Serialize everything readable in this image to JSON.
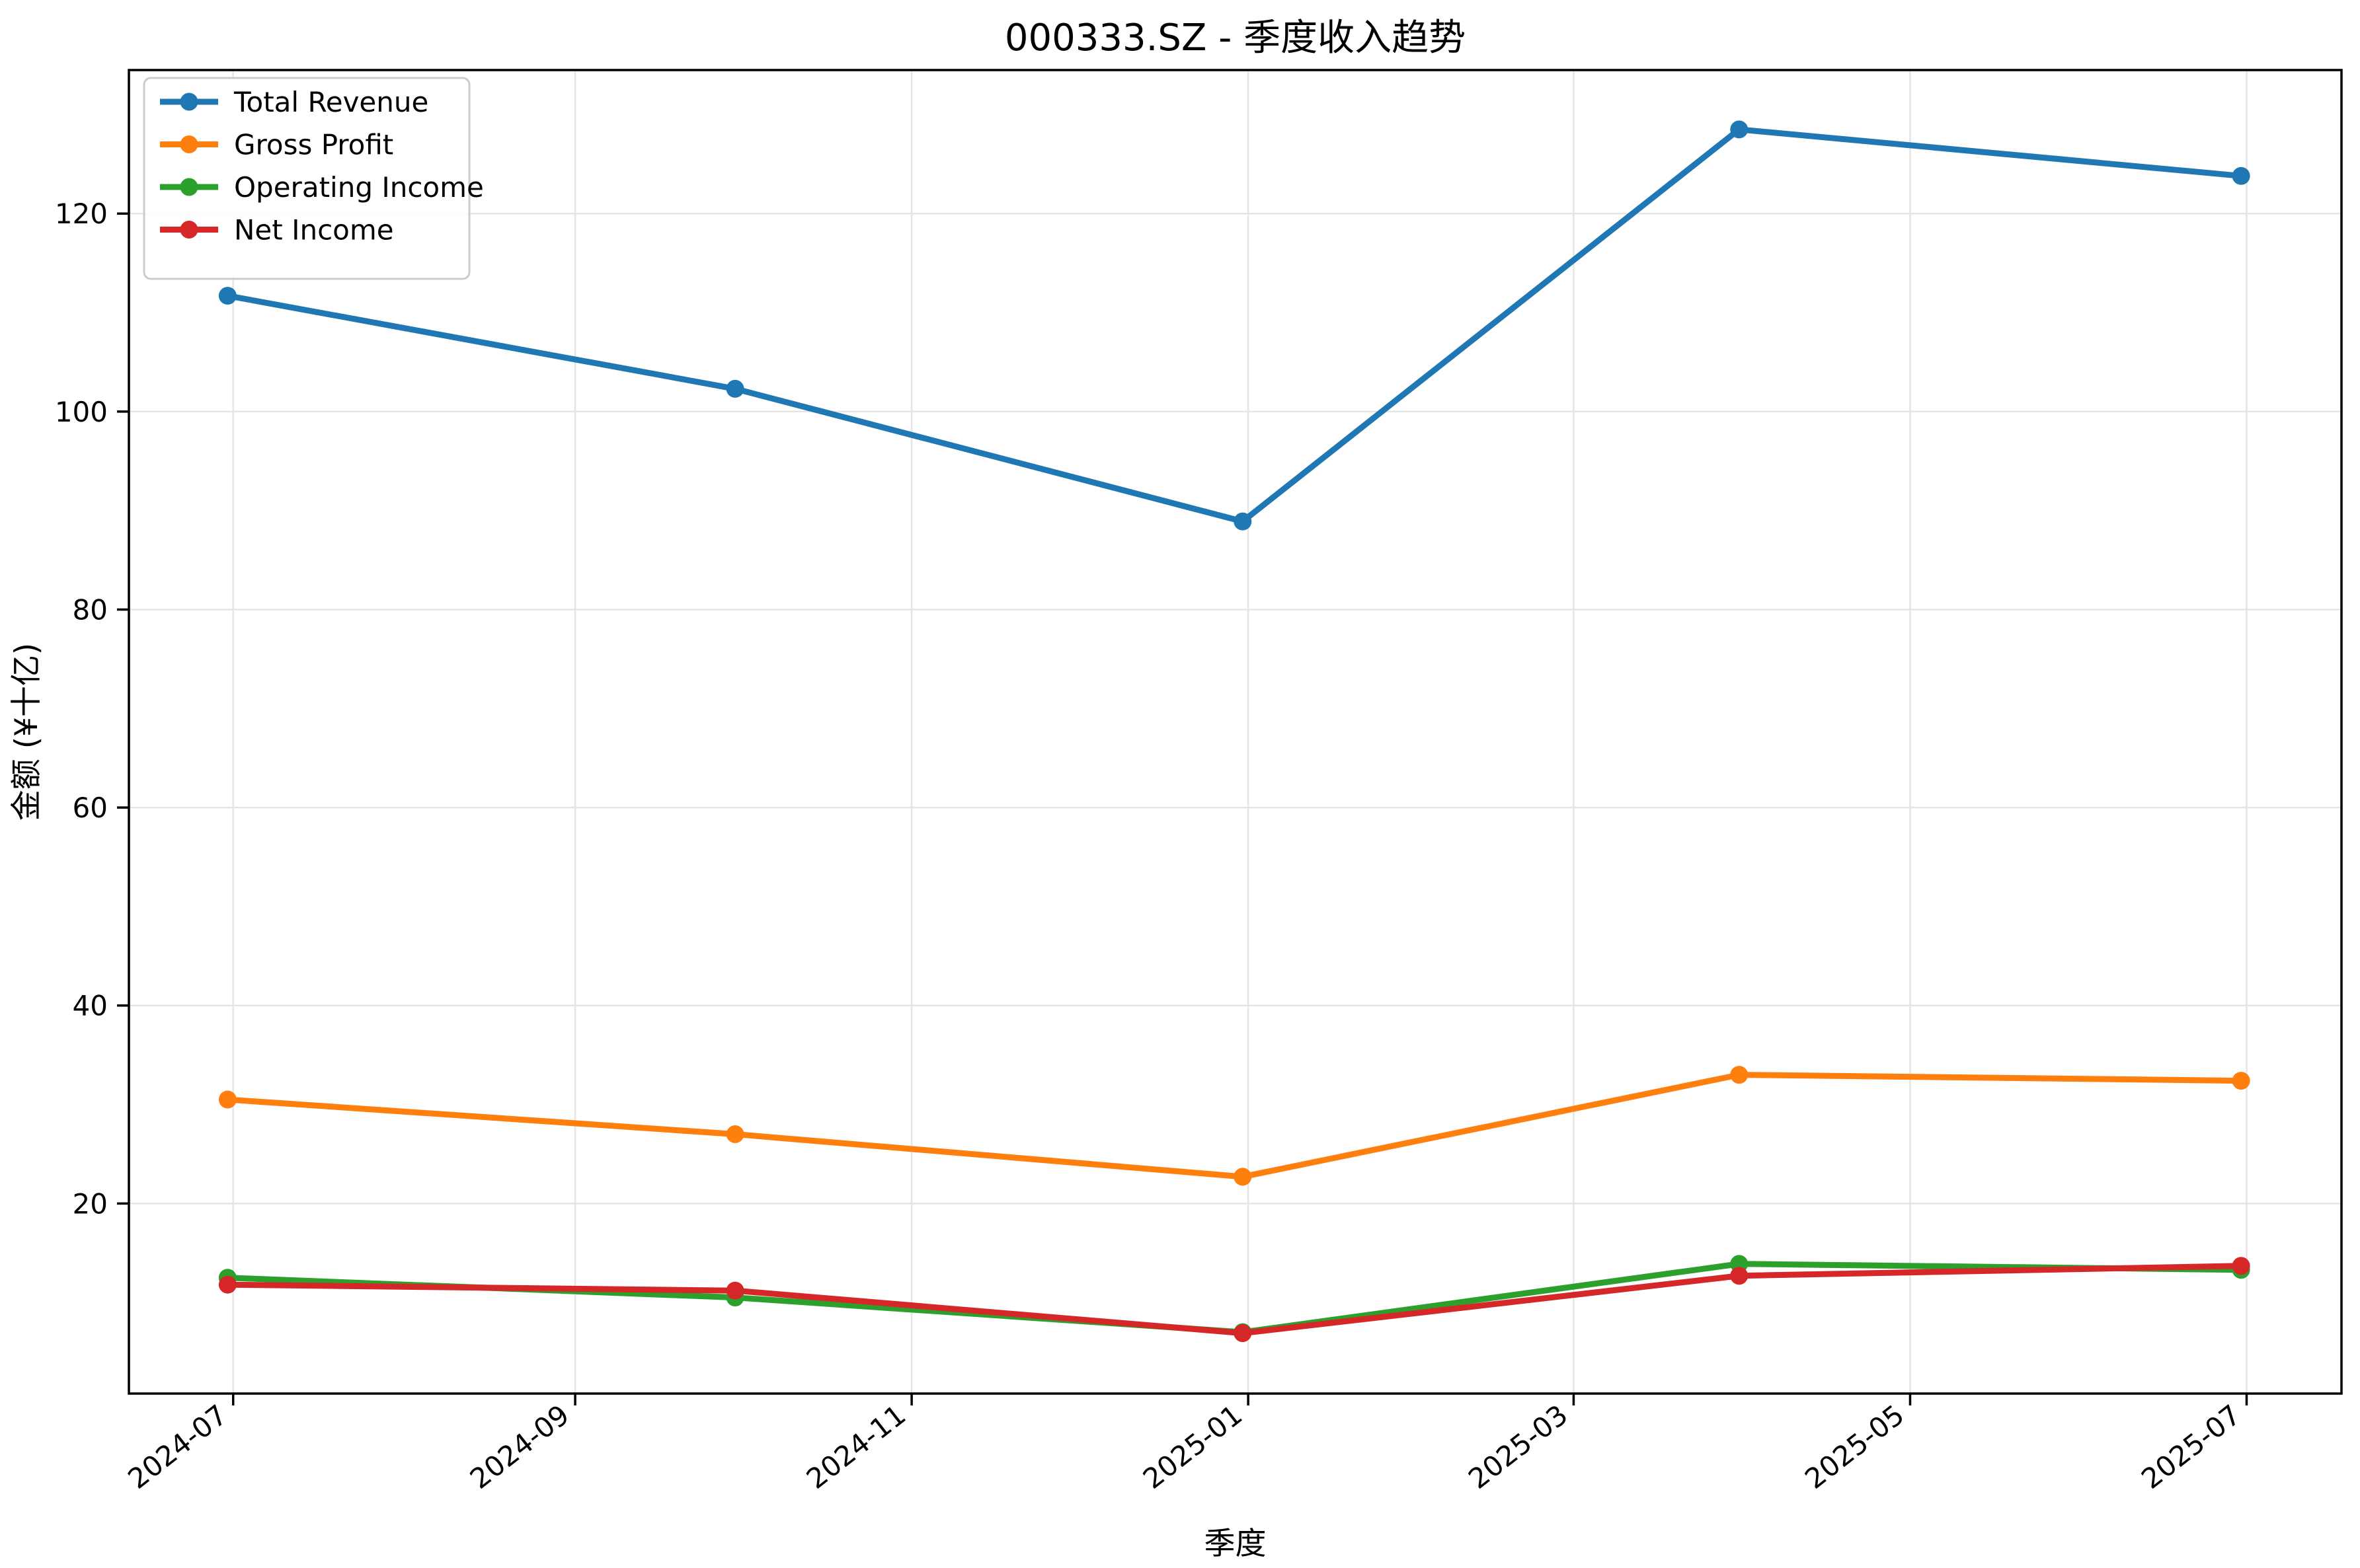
{
  "title": "000333.SZ - 季度收入趋势",
  "chart_data": {
    "type": "line",
    "title": "000333.SZ - 季度收入趋势",
    "xlabel": "季度",
    "ylabel": "金额 (¥十亿)",
    "grid": true,
    "legend_position": "upper left",
    "ylim": [
      0.8,
      134.5
    ],
    "y_ticks": [
      20,
      40,
      60,
      80,
      100,
      120
    ],
    "x_tick_labels": [
      "2024-07",
      "2024-09",
      "2024-11",
      "2025-01",
      "2025-03",
      "2025-05",
      "2025-07"
    ],
    "x_tick_day_offsets": [
      0,
      62,
      123,
      184,
      243,
      304,
      365
    ],
    "x_range_days": [
      -18.9,
      382.2
    ],
    "x_dates": [
      "2024-06-30",
      "2024-09-30",
      "2024-12-31",
      "2025-03-31",
      "2025-06-30"
    ],
    "x_day_offsets": [
      -1,
      91,
      183,
      273,
      364
    ],
    "series": [
      {
        "name": "Total Revenue",
        "color": "#1f77b4",
        "values": [
          111.7,
          102.3,
          88.9,
          128.5,
          123.8
        ]
      },
      {
        "name": "Gross Profit",
        "color": "#ff7f0e",
        "values": [
          30.5,
          27.0,
          22.7,
          33.0,
          32.4
        ]
      },
      {
        "name": "Operating Income",
        "color": "#2ca02c",
        "values": [
          12.5,
          10.5,
          7.0,
          13.9,
          13.3
        ]
      },
      {
        "name": "Net Income",
        "color": "#d62728",
        "values": [
          11.8,
          11.2,
          6.9,
          12.7,
          13.7
        ]
      }
    ],
    "grid_color": "#e5e5e5",
    "spine_color": "#000000"
  }
}
